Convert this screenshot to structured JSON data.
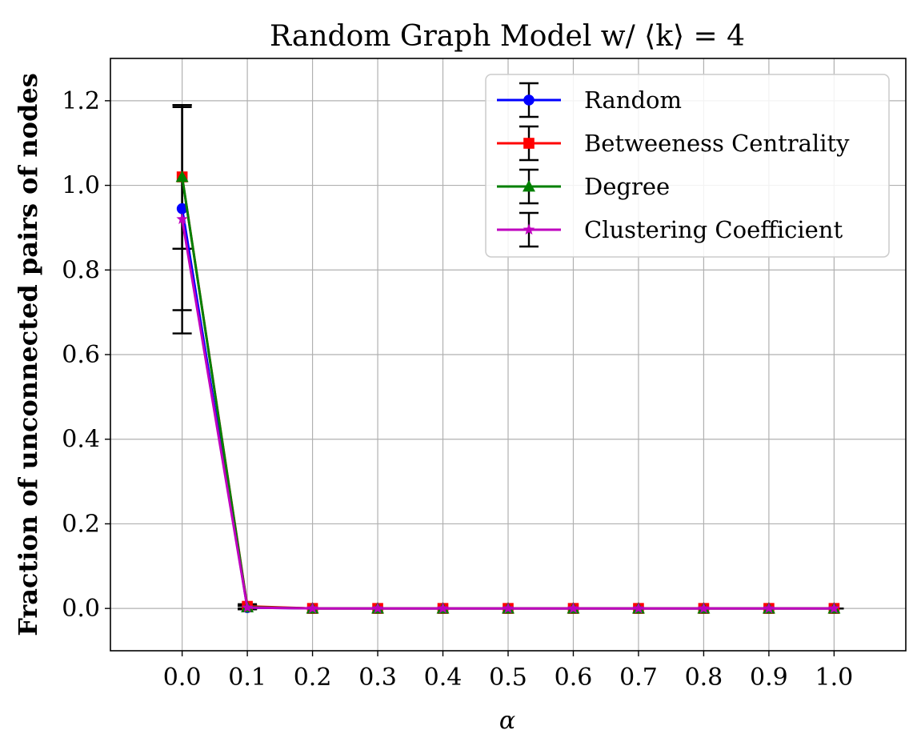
{
  "chart_data": {
    "type": "line",
    "title": "Random Graph Model w/ ⟨k⟩ = 4",
    "xlabel": "α",
    "ylabel": "Fraction of unconnected pairs of nodes",
    "x": [
      0.0,
      0.1,
      0.2,
      0.3,
      0.4,
      0.5,
      0.6,
      0.7,
      0.8,
      0.9,
      1.0
    ],
    "x_tick_labels": [
      "0.0",
      "0.1",
      "0.2",
      "0.3",
      "0.4",
      "0.5",
      "0.6",
      "0.7",
      "0.8",
      "0.9",
      "1.0"
    ],
    "y_ticks": [
      0.0,
      0.2,
      0.4,
      0.6,
      0.8,
      1.0,
      1.2
    ],
    "y_tick_labels": [
      "0.0",
      "0.2",
      "0.4",
      "0.6",
      "0.8",
      "1.0",
      "1.2"
    ],
    "xlim": [
      -0.11,
      1.11
    ],
    "ylim": [
      -0.1,
      1.3
    ],
    "grid": true,
    "legend_position": "top-right",
    "error_bar_color": "#000000",
    "series": [
      {
        "name": "Random",
        "color": "#0000ff",
        "marker": "circle",
        "values": [
          0.945,
          0.002,
          0.0,
          0.0,
          0.0,
          0.0,
          0.0,
          0.0,
          0.0,
          0.0,
          0.0
        ],
        "errors": [
          0.24,
          0.004,
          0.0,
          0.0,
          0.0,
          0.0,
          0.0,
          0.0,
          0.0,
          0.0,
          0.0
        ]
      },
      {
        "name": "Betweeness Centrality",
        "color": "#ff0000",
        "marker": "square",
        "values": [
          1.02,
          0.005,
          0.0,
          0.0,
          0.0,
          0.0,
          0.0,
          0.0,
          0.0,
          0.0,
          0.0
        ],
        "errors": [
          0.17,
          0.005,
          0.0,
          0.0,
          0.0,
          0.0,
          0.0,
          0.0,
          0.0,
          0.0,
          0.0
        ]
      },
      {
        "name": "Degree",
        "color": "#008000",
        "marker": "triangle",
        "values": [
          1.02,
          0.003,
          0.0,
          0.0,
          0.0,
          0.0,
          0.0,
          0.0,
          0.0,
          0.0,
          0.0
        ],
        "errors": [
          0.17,
          0.004,
          0.0,
          0.0,
          0.0,
          0.0,
          0.0,
          0.0,
          0.0,
          0.0,
          0.0
        ]
      },
      {
        "name": "Clustering Coefficient",
        "color": "#bf00bf",
        "marker": "star",
        "values": [
          0.92,
          0.002,
          0.0,
          0.0,
          0.0,
          0.0,
          0.0,
          0.0,
          0.0,
          0.0,
          0.0
        ],
        "errors": [
          0.27,
          0.004,
          0.0,
          0.0,
          0.0,
          0.0,
          0.0,
          0.0,
          0.0,
          0.0,
          0.0
        ]
      }
    ]
  }
}
